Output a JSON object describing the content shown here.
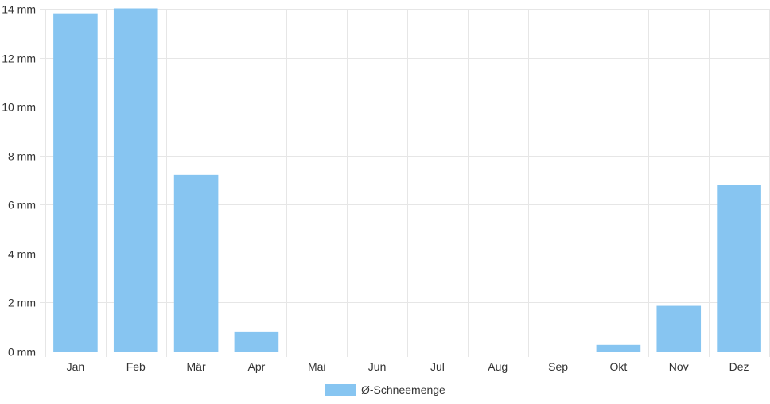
{
  "chart_data": {
    "type": "bar",
    "categories": [
      "Jan",
      "Feb",
      "Mär",
      "Apr",
      "Mai",
      "Jun",
      "Jul",
      "Aug",
      "Sep",
      "Okt",
      "Nov",
      "Dez"
    ],
    "series": [
      {
        "name": "Ø-Schneemenge",
        "color": "#87c5f1",
        "values": [
          13.8,
          14.0,
          7.2,
          0.8,
          0,
          0,
          0,
          0,
          0,
          0.25,
          1.85,
          6.8
        ]
      }
    ],
    "ylim": [
      0,
      14
    ],
    "yticks": [
      0,
      2,
      4,
      6,
      8,
      10,
      12,
      14
    ],
    "ytick_labels": [
      "0 mm",
      "2 mm",
      "4 mm",
      "6 mm",
      "8 mm",
      "10 mm",
      "12 mm",
      "14 mm"
    ],
    "title": "",
    "xlabel": "",
    "ylabel": "",
    "grid": true,
    "legend_position": "bottom"
  }
}
